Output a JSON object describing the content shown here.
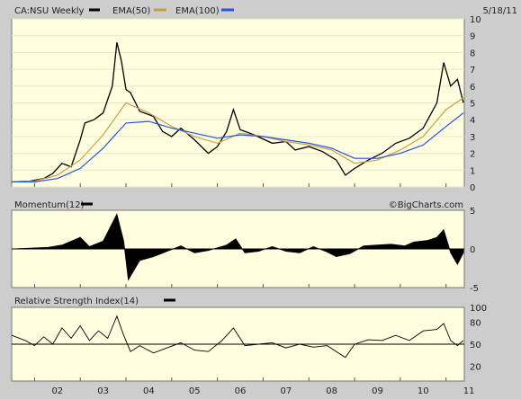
{
  "header": {
    "symbol_label": "CA:NSU Weekly",
    "ema50_label": "EMA(50)",
    "ema100_label": "EMA(100)",
    "date": "5/18/11",
    "watermark": "©BigCharts.com"
  },
  "colors": {
    "panel_bg": "#ffffe0",
    "frame_bg": "#cdcdcd",
    "price": "#000000",
    "ema50": "#c8a040",
    "ema100": "#2255dd",
    "grid": "#e6e6c8"
  },
  "chart_data": [
    {
      "type": "line",
      "title": "CA:NSU Weekly",
      "x_unit": "year",
      "x_ticks": [
        "02",
        "03",
        "04",
        "05",
        "06",
        "07",
        "08",
        "09",
        "10",
        "11"
      ],
      "ylim": [
        0,
        10
      ],
      "y_ticks": [
        0,
        1,
        2,
        3,
        4,
        5,
        6,
        7,
        8,
        9,
        10
      ],
      "series": [
        {
          "name": "CA:NSU Weekly",
          "style": "high-low bars",
          "points": [
            {
              "x": 2001.5,
              "y": 0.3
            },
            {
              "x": 2001.9,
              "y": 0.35
            },
            {
              "x": 2002.2,
              "y": 0.5
            },
            {
              "x": 2002.4,
              "y": 0.8
            },
            {
              "x": 2002.6,
              "y": 1.4
            },
            {
              "x": 2002.8,
              "y": 1.2
            },
            {
              "x": 2003.0,
              "y": 2.8
            },
            {
              "x": 2003.1,
              "y": 3.8
            },
            {
              "x": 2003.3,
              "y": 4.0
            },
            {
              "x": 2003.5,
              "y": 4.4
            },
            {
              "x": 2003.7,
              "y": 6.0
            },
            {
              "x": 2003.8,
              "y": 8.6
            },
            {
              "x": 2003.9,
              "y": 7.5
            },
            {
              "x": 2004.0,
              "y": 5.8
            },
            {
              "x": 2004.1,
              "y": 5.6
            },
            {
              "x": 2004.3,
              "y": 4.5
            },
            {
              "x": 2004.6,
              "y": 4.2
            },
            {
              "x": 2004.8,
              "y": 3.3
            },
            {
              "x": 2005.0,
              "y": 3.0
            },
            {
              "x": 2005.2,
              "y": 3.5
            },
            {
              "x": 2005.5,
              "y": 2.8
            },
            {
              "x": 2005.8,
              "y": 2.0
            },
            {
              "x": 2006.0,
              "y": 2.4
            },
            {
              "x": 2006.2,
              "y": 3.3
            },
            {
              "x": 2006.35,
              "y": 4.6
            },
            {
              "x": 2006.5,
              "y": 3.4
            },
            {
              "x": 2006.8,
              "y": 3.1
            },
            {
              "x": 2007.2,
              "y": 2.6
            },
            {
              "x": 2007.5,
              "y": 2.7
            },
            {
              "x": 2007.7,
              "y": 2.2
            },
            {
              "x": 2008.0,
              "y": 2.4
            },
            {
              "x": 2008.3,
              "y": 2.1
            },
            {
              "x": 2008.6,
              "y": 1.6
            },
            {
              "x": 2008.8,
              "y": 0.7
            },
            {
              "x": 2009.0,
              "y": 1.1
            },
            {
              "x": 2009.3,
              "y": 1.6
            },
            {
              "x": 2009.6,
              "y": 2.0
            },
            {
              "x": 2009.9,
              "y": 2.6
            },
            {
              "x": 2010.2,
              "y": 2.9
            },
            {
              "x": 2010.5,
              "y": 3.5
            },
            {
              "x": 2010.8,
              "y": 5.0
            },
            {
              "x": 2010.95,
              "y": 7.4
            },
            {
              "x": 2011.1,
              "y": 6.0
            },
            {
              "x": 2011.25,
              "y": 6.4
            },
            {
              "x": 2011.38,
              "y": 5.0
            }
          ]
        },
        {
          "name": "EMA(50)",
          "points": [
            {
              "x": 2001.5,
              "y": 0.3
            },
            {
              "x": 2002.0,
              "y": 0.35
            },
            {
              "x": 2002.5,
              "y": 0.7
            },
            {
              "x": 2003.0,
              "y": 1.6
            },
            {
              "x": 2003.5,
              "y": 3.1
            },
            {
              "x": 2004.0,
              "y": 5.0
            },
            {
              "x": 2004.5,
              "y": 4.4
            },
            {
              "x": 2005.0,
              "y": 3.6
            },
            {
              "x": 2005.5,
              "y": 3.0
            },
            {
              "x": 2006.0,
              "y": 2.6
            },
            {
              "x": 2006.5,
              "y": 3.2
            },
            {
              "x": 2007.0,
              "y": 3.0
            },
            {
              "x": 2007.5,
              "y": 2.7
            },
            {
              "x": 2008.0,
              "y": 2.5
            },
            {
              "x": 2008.5,
              "y": 2.2
            },
            {
              "x": 2009.0,
              "y": 1.4
            },
            {
              "x": 2009.5,
              "y": 1.6
            },
            {
              "x": 2010.0,
              "y": 2.2
            },
            {
              "x": 2010.5,
              "y": 3.0
            },
            {
              "x": 2011.0,
              "y": 4.6
            },
            {
              "x": 2011.38,
              "y": 5.3
            }
          ]
        },
        {
          "name": "EMA(100)",
          "points": [
            {
              "x": 2001.5,
              "y": 0.3
            },
            {
              "x": 2002.0,
              "y": 0.3
            },
            {
              "x": 2002.5,
              "y": 0.5
            },
            {
              "x": 2003.0,
              "y": 1.1
            },
            {
              "x": 2003.5,
              "y": 2.3
            },
            {
              "x": 2004.0,
              "y": 3.8
            },
            {
              "x": 2004.5,
              "y": 3.9
            },
            {
              "x": 2005.0,
              "y": 3.5
            },
            {
              "x": 2005.5,
              "y": 3.2
            },
            {
              "x": 2006.0,
              "y": 2.9
            },
            {
              "x": 2006.5,
              "y": 3.1
            },
            {
              "x": 2007.0,
              "y": 3.0
            },
            {
              "x": 2007.5,
              "y": 2.8
            },
            {
              "x": 2008.0,
              "y": 2.6
            },
            {
              "x": 2008.5,
              "y": 2.3
            },
            {
              "x": 2009.0,
              "y": 1.7
            },
            {
              "x": 2009.5,
              "y": 1.7
            },
            {
              "x": 2010.0,
              "y": 2.0
            },
            {
              "x": 2010.5,
              "y": 2.5
            },
            {
              "x": 2011.0,
              "y": 3.6
            },
            {
              "x": 2011.38,
              "y": 4.4
            }
          ]
        }
      ]
    },
    {
      "type": "bar",
      "title": "Momentum(12)",
      "ylim": [
        -5,
        5
      ],
      "y_ticks": [
        -5,
        0,
        5
      ],
      "points": [
        {
          "x": 2001.5,
          "y": 0.0
        },
        {
          "x": 2002.3,
          "y": 0.2
        },
        {
          "x": 2002.6,
          "y": 0.5
        },
        {
          "x": 2003.0,
          "y": 1.5
        },
        {
          "x": 2003.2,
          "y": 0.3
        },
        {
          "x": 2003.5,
          "y": 1.0
        },
        {
          "x": 2003.8,
          "y": 4.5
        },
        {
          "x": 2003.95,
          "y": 1.0
        },
        {
          "x": 2004.05,
          "y": -4.0
        },
        {
          "x": 2004.3,
          "y": -1.5
        },
        {
          "x": 2004.6,
          "y": -1.0
        },
        {
          "x": 2004.9,
          "y": -0.3
        },
        {
          "x": 2005.2,
          "y": 0.4
        },
        {
          "x": 2005.5,
          "y": -0.5
        },
        {
          "x": 2005.8,
          "y": -0.2
        },
        {
          "x": 2006.2,
          "y": 0.5
        },
        {
          "x": 2006.4,
          "y": 1.3
        },
        {
          "x": 2006.6,
          "y": -0.5
        },
        {
          "x": 2006.9,
          "y": -0.3
        },
        {
          "x": 2007.2,
          "y": 0.3
        },
        {
          "x": 2007.5,
          "y": -0.3
        },
        {
          "x": 2007.8,
          "y": -0.5
        },
        {
          "x": 2008.1,
          "y": 0.3
        },
        {
          "x": 2008.4,
          "y": -0.4
        },
        {
          "x": 2008.6,
          "y": -1.0
        },
        {
          "x": 2008.9,
          "y": -0.6
        },
        {
          "x": 2009.2,
          "y": 0.4
        },
        {
          "x": 2009.5,
          "y": 0.5
        },
        {
          "x": 2009.8,
          "y": 0.6
        },
        {
          "x": 2010.1,
          "y": 0.4
        },
        {
          "x": 2010.3,
          "y": 0.9
        },
        {
          "x": 2010.6,
          "y": 1.1
        },
        {
          "x": 2010.8,
          "y": 1.5
        },
        {
          "x": 2010.95,
          "y": 2.5
        },
        {
          "x": 2011.1,
          "y": -0.5
        },
        {
          "x": 2011.25,
          "y": -2.0
        },
        {
          "x": 2011.38,
          "y": -0.5
        }
      ]
    },
    {
      "type": "line",
      "title": "Relative Strength Index(14)",
      "ylim": [
        0,
        100
      ],
      "y_ticks": [
        20,
        50,
        80,
        100
      ],
      "points": [
        {
          "x": 2001.5,
          "y": 62
        },
        {
          "x": 2001.8,
          "y": 55
        },
        {
          "x": 2002.0,
          "y": 48
        },
        {
          "x": 2002.2,
          "y": 60
        },
        {
          "x": 2002.4,
          "y": 50
        },
        {
          "x": 2002.6,
          "y": 72
        },
        {
          "x": 2002.8,
          "y": 58
        },
        {
          "x": 2003.0,
          "y": 75
        },
        {
          "x": 2003.2,
          "y": 55
        },
        {
          "x": 2003.4,
          "y": 68
        },
        {
          "x": 2003.6,
          "y": 58
        },
        {
          "x": 2003.8,
          "y": 88
        },
        {
          "x": 2003.95,
          "y": 62
        },
        {
          "x": 2004.1,
          "y": 40
        },
        {
          "x": 2004.3,
          "y": 48
        },
        {
          "x": 2004.6,
          "y": 38
        },
        {
          "x": 2004.9,
          "y": 45
        },
        {
          "x": 2005.2,
          "y": 52
        },
        {
          "x": 2005.5,
          "y": 42
        },
        {
          "x": 2005.8,
          "y": 40
        },
        {
          "x": 2006.1,
          "y": 55
        },
        {
          "x": 2006.35,
          "y": 72
        },
        {
          "x": 2006.6,
          "y": 48
        },
        {
          "x": 2006.9,
          "y": 50
        },
        {
          "x": 2007.2,
          "y": 52
        },
        {
          "x": 2007.5,
          "y": 45
        },
        {
          "x": 2007.8,
          "y": 50
        },
        {
          "x": 2008.1,
          "y": 46
        },
        {
          "x": 2008.4,
          "y": 48
        },
        {
          "x": 2008.6,
          "y": 40
        },
        {
          "x": 2008.8,
          "y": 32
        },
        {
          "x": 2009.0,
          "y": 50
        },
        {
          "x": 2009.3,
          "y": 56
        },
        {
          "x": 2009.6,
          "y": 55
        },
        {
          "x": 2009.9,
          "y": 62
        },
        {
          "x": 2010.2,
          "y": 55
        },
        {
          "x": 2010.5,
          "y": 68
        },
        {
          "x": 2010.8,
          "y": 70
        },
        {
          "x": 2010.95,
          "y": 78
        },
        {
          "x": 2011.1,
          "y": 55
        },
        {
          "x": 2011.25,
          "y": 48
        },
        {
          "x": 2011.38,
          "y": 55
        }
      ]
    }
  ]
}
